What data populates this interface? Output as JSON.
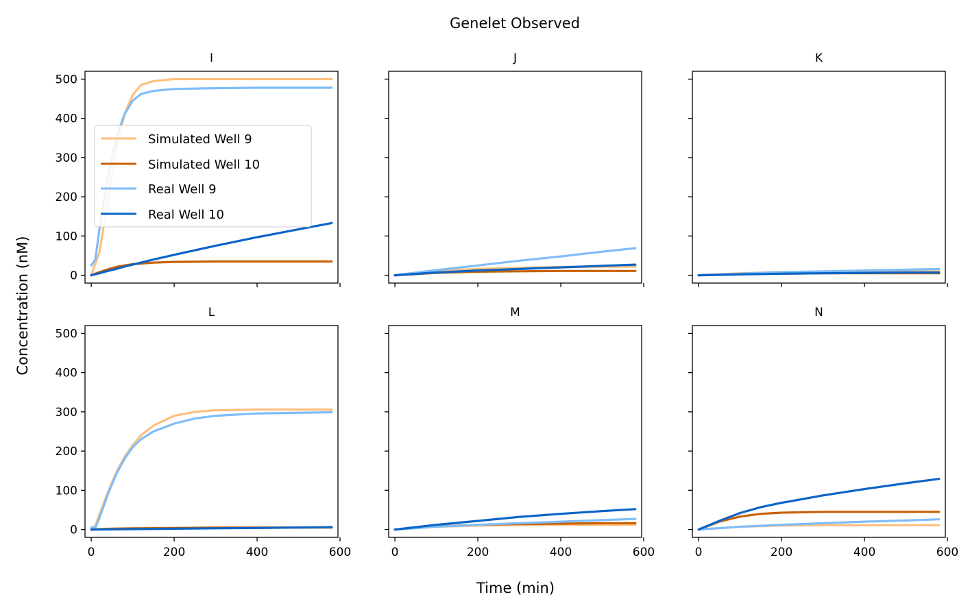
{
  "figure": {
    "title": "Genelet Observed",
    "xlabel": "Time (min)",
    "ylabel": "Concentration (nM)"
  },
  "legend": {
    "placement": "upper-left of panel I",
    "entries": [
      {
        "label": "Simulated Well 9",
        "color": "#FDBF7F"
      },
      {
        "label": "Simulated Well 10",
        "color": "#C76102"
      },
      {
        "label": "Real Well 9",
        "color": "#7FBDF8"
      },
      {
        "label": "Real Well 10",
        "color": "#0A64C8"
      }
    ]
  },
  "chart_data": {
    "type": "line",
    "layout": "2x3 grid, shared x and y axes",
    "xlim": [
      -15,
      595
    ],
    "ylim": [
      -20,
      520
    ],
    "xticks": [
      0,
      200,
      400,
      600
    ],
    "yticks": [
      0,
      100,
      200,
      300,
      400,
      500
    ],
    "grid": false,
    "panels": [
      {
        "title": "I",
        "series": [
          {
            "name": "Simulated Well 9",
            "color": "#FDBF7F",
            "x": [
              0,
              20,
              40,
              60,
              80,
              100,
              120,
              150,
              200,
              300,
              400,
              580
            ],
            "y": [
              0,
              60,
              190,
              320,
              410,
              460,
              485,
              495,
              500,
              500,
              500,
              500
            ]
          },
          {
            "name": "Simulated Well 10",
            "color": "#C76102",
            "x": [
              0,
              20,
              40,
              60,
              80,
              100,
              150,
              200,
              300,
              400,
              580
            ],
            "y": [
              0,
              8,
              15,
              21,
              25,
              28,
              32,
              34,
              35,
              35,
              35
            ]
          },
          {
            "name": "Real Well 9",
            "color": "#7FBDF8",
            "x": [
              0,
              10,
              20,
              40,
              60,
              80,
              100,
              120,
              150,
              200,
              300,
              400,
              580
            ],
            "y": [
              25,
              40,
              120,
              250,
              350,
              410,
              445,
              462,
              470,
              475,
              477,
              478,
              478
            ]
          },
          {
            "name": "Real Well 10",
            "color": "#0A64C8",
            "x": [
              0,
              20,
              40,
              60,
              80,
              100,
              150,
              200,
              300,
              400,
              500,
              580
            ],
            "y": [
              0,
              5,
              11,
              16,
              22,
              27,
              40,
              52,
              75,
              97,
              117,
              133
            ]
          }
        ]
      },
      {
        "title": "J",
        "series": [
          {
            "name": "Simulated Well 9",
            "color": "#FDBF7F",
            "x": [
              0,
              100,
              200,
              300,
              400,
              580
            ],
            "y": [
              0,
              11,
              16,
              19,
              21,
              22
            ]
          },
          {
            "name": "Simulated Well 10",
            "color": "#C76102",
            "x": [
              0,
              100,
              200,
              300,
              400,
              580
            ],
            "y": [
              0,
              6,
              9,
              10,
              11,
              11
            ]
          },
          {
            "name": "Real Well 9",
            "color": "#7FBDF8",
            "x": [
              0,
              100,
              200,
              300,
              400,
              500,
              580
            ],
            "y": [
              0,
              13,
              25,
              37,
              48,
              60,
              69
            ]
          },
          {
            "name": "Real Well 10",
            "color": "#0A64C8",
            "x": [
              0,
              100,
              200,
              300,
              400,
              500,
              580
            ],
            "y": [
              0,
              7,
              12,
              16,
              20,
              24,
              27
            ]
          }
        ]
      },
      {
        "title": "K",
        "series": [
          {
            "name": "Simulated Well 9",
            "color": "#FDBF7F",
            "x": [
              0,
              100,
              200,
              300,
              400,
              580
            ],
            "y": [
              0,
              5,
              8,
              9,
              10,
              10
            ]
          },
          {
            "name": "Simulated Well 10",
            "color": "#C76102",
            "x": [
              0,
              100,
              200,
              300,
              400,
              580
            ],
            "y": [
              0,
              3,
              4,
              5,
              5,
              5
            ]
          },
          {
            "name": "Real Well 9",
            "color": "#7FBDF8",
            "x": [
              0,
              100,
              200,
              300,
              400,
              500,
              580
            ],
            "y": [
              0,
              4,
              8,
              10,
              12,
              14,
              16
            ]
          },
          {
            "name": "Real Well 10",
            "color": "#0A64C8",
            "x": [
              0,
              100,
              200,
              300,
              400,
              500,
              580
            ],
            "y": [
              0,
              2,
              4,
              5,
              6,
              7,
              7
            ]
          }
        ]
      },
      {
        "title": "L",
        "series": [
          {
            "name": "Simulated Well 9",
            "color": "#FDBF7F",
            "x": [
              0,
              10,
              20,
              40,
              60,
              80,
              100,
              120,
              150,
              200,
              250,
              300,
              400,
              580
            ],
            "y": [
              0,
              10,
              40,
              95,
              145,
              185,
              215,
              240,
              265,
              290,
              300,
              304,
              306,
              306
            ]
          },
          {
            "name": "Simulated Well 10",
            "color": "#C76102",
            "x": [
              0,
              50,
              100,
              200,
              300,
              400,
              580
            ],
            "y": [
              0,
              2,
              3,
              4,
              5,
              5,
              5
            ]
          },
          {
            "name": "Real Well 9",
            "color": "#7FBDF8",
            "x": [
              0,
              10,
              20,
              40,
              60,
              80,
              100,
              120,
              150,
              200,
              250,
              300,
              400,
              580
            ],
            "y": [
              5,
              5,
              30,
              90,
              140,
              180,
              210,
              230,
              250,
              270,
              283,
              290,
              296,
              299
            ]
          },
          {
            "name": "Real Well 10",
            "color": "#0A64C8",
            "x": [
              0,
              100,
              200,
              300,
              400,
              500,
              580
            ],
            "y": [
              0,
              1,
              2,
              3,
              4,
              5,
              6
            ]
          }
        ]
      },
      {
        "title": "M",
        "series": [
          {
            "name": "Simulated Well 9",
            "color": "#FDBF7F",
            "x": [
              0,
              100,
              200,
              300,
              400,
              580
            ],
            "y": [
              0,
              7,
              10,
              11,
              12,
              12
            ]
          },
          {
            "name": "Simulated Well 10",
            "color": "#C76102",
            "x": [
              0,
              100,
              200,
              300,
              400,
              500,
              580
            ],
            "y": [
              0,
              8,
              12,
              14,
              15,
              16,
              16
            ]
          },
          {
            "name": "Real Well 9",
            "color": "#7FBDF8",
            "x": [
              0,
              100,
              200,
              300,
              400,
              500,
              580
            ],
            "y": [
              0,
              7,
              12,
              16,
              20,
              24,
              27
            ]
          },
          {
            "name": "Real Well 10",
            "color": "#0A64C8",
            "x": [
              0,
              100,
              200,
              300,
              400,
              500,
              580
            ],
            "y": [
              0,
              12,
              22,
              32,
              40,
              47,
              52
            ]
          }
        ]
      },
      {
        "title": "N",
        "series": [
          {
            "name": "Simulated Well 9",
            "color": "#FDBF7F",
            "x": [
              0,
              100,
              200,
              300,
              400,
              580
            ],
            "y": [
              0,
              7,
              10,
              11,
              11,
              11
            ]
          },
          {
            "name": "Simulated Well 10",
            "color": "#C76102",
            "x": [
              0,
              50,
              100,
              150,
              200,
              250,
              300,
              400,
              580
            ],
            "y": [
              0,
              20,
              33,
              40,
              43,
              44,
              45,
              45,
              45
            ]
          },
          {
            "name": "Real Well 9",
            "color": "#7FBDF8",
            "x": [
              0,
              100,
              200,
              300,
              400,
              500,
              580
            ],
            "y": [
              0,
              7,
              12,
              16,
              20,
              23,
              26
            ]
          },
          {
            "name": "Real Well 10",
            "color": "#0A64C8",
            "x": [
              0,
              50,
              100,
              150,
              200,
              300,
              400,
              500,
              580
            ],
            "y": [
              0,
              22,
              42,
              57,
              68,
              87,
              103,
              118,
              129
            ]
          }
        ]
      }
    ]
  }
}
